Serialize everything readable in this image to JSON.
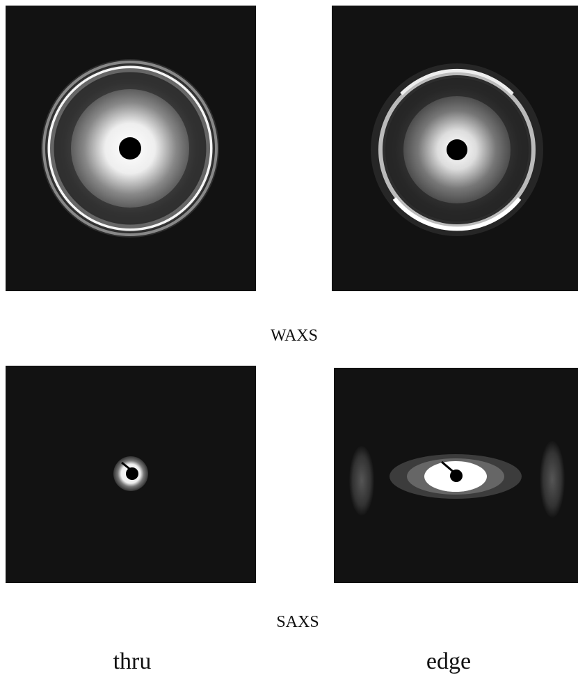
{
  "figure": {
    "rows": [
      "WAXS",
      "SAXS"
    ],
    "columns": [
      "thru",
      "edge"
    ]
  }
}
